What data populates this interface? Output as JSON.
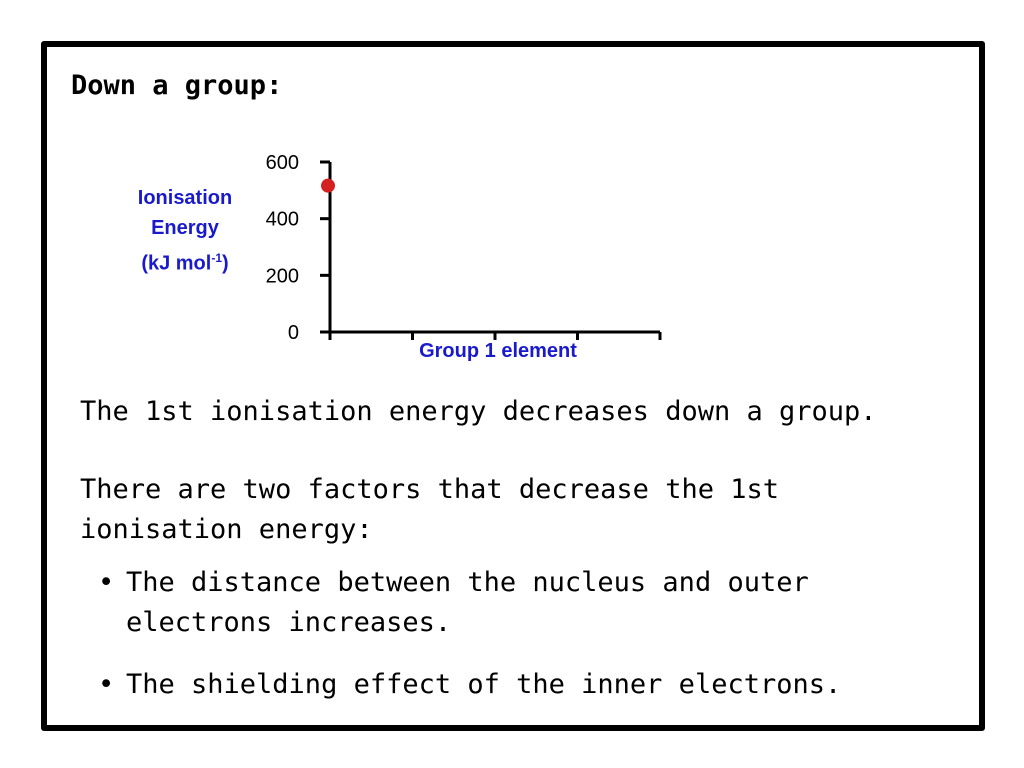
{
  "slide": {
    "title": "Down a group:",
    "statement": "The 1st ionisation energy decreases down a group.",
    "factors_intro": "There are two factors that decrease the 1st ionisation energy:",
    "bullets": [
      "The distance between the nucleus and outer electrons increases.",
      "The shielding effect of the inner electrons."
    ],
    "bullet_glyph": "•"
  },
  "chart_data": {
    "type": "scatter",
    "title": "",
    "xlabel": "Group 1 element",
    "ylabel": {
      "line1": "Ionisation",
      "line2": "Energy",
      "line3_pre": "(kJ mol",
      "line3_sup": "-1",
      "line3_post": ")"
    },
    "ylim": [
      0,
      600
    ],
    "yticks": [
      0,
      200,
      400,
      600
    ],
    "x_category_count": 4,
    "series": [
      {
        "color": "#d42020",
        "points": [
          {
            "x": 0,
            "y": 520
          }
        ]
      }
    ],
    "grid": false
  }
}
